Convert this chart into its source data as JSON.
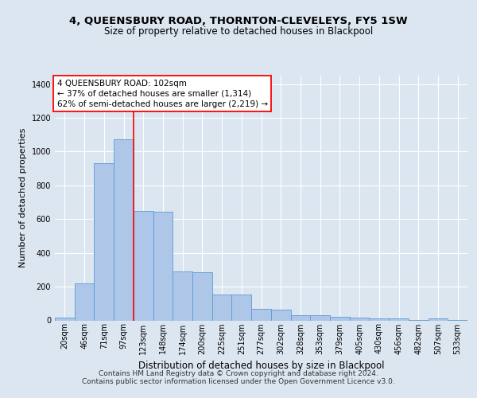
{
  "title": "4, QUEENSBURY ROAD, THORNTON-CLEVELEYS, FY5 1SW",
  "subtitle": "Size of property relative to detached houses in Blackpool",
  "xlabel": "Distribution of detached houses by size in Blackpool",
  "ylabel": "Number of detached properties",
  "footer_line1": "Contains HM Land Registry data © Crown copyright and database right 2024.",
  "footer_line2": "Contains public sector information licensed under the Open Government Licence v3.0.",
  "categories": [
    "20sqm",
    "46sqm",
    "71sqm",
    "97sqm",
    "123sqm",
    "148sqm",
    "174sqm",
    "200sqm",
    "225sqm",
    "251sqm",
    "277sqm",
    "302sqm",
    "328sqm",
    "353sqm",
    "379sqm",
    "405sqm",
    "430sqm",
    "456sqm",
    "482sqm",
    "507sqm",
    "533sqm"
  ],
  "values": [
    15,
    220,
    930,
    1075,
    650,
    645,
    290,
    285,
    155,
    155,
    70,
    65,
    33,
    30,
    20,
    18,
    13,
    12,
    2,
    13,
    2
  ],
  "bar_color": "#aec6e8",
  "bar_edge_color": "#5b9bd5",
  "annotation_box_text": "4 QUEENSBURY ROAD: 102sqm\n← 37% of detached houses are smaller (1,314)\n62% of semi-detached houses are larger (2,219) →",
  "annotation_box_color": "white",
  "annotation_box_edge_color": "red",
  "vline_x": 3.5,
  "vline_color": "red",
  "ylim": [
    0,
    1450
  ],
  "yticks": [
    0,
    200,
    400,
    600,
    800,
    1000,
    1200,
    1400
  ],
  "background_color": "#dce6f1",
  "plot_background": "#dce6f1",
  "grid_color": "white",
  "title_fontsize": 9.5,
  "subtitle_fontsize": 8.5,
  "xlabel_fontsize": 8.5,
  "ylabel_fontsize": 8,
  "tick_fontsize": 7,
  "annotation_fontsize": 7.5,
  "footer_fontsize": 6.5
}
